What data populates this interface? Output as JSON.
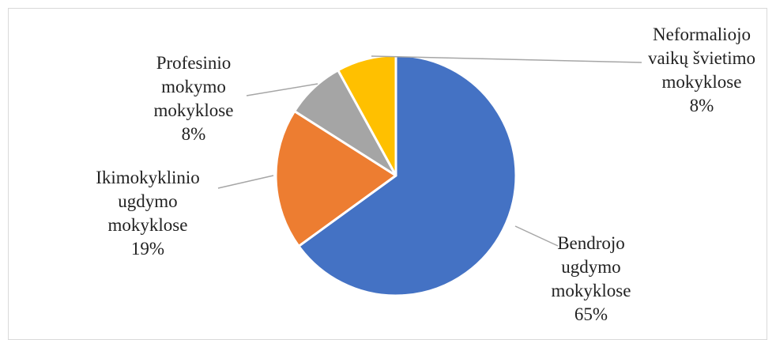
{
  "chart_data": {
    "type": "pie",
    "slices": [
      {
        "label": [
          "Bendrojo",
          "ugdymo",
          "mokyklose"
        ],
        "pct_label": "65%",
        "value": 65,
        "color": "#4472C4"
      },
      {
        "label": [
          "Ikimokyklinio",
          "ugdymo",
          "mokyklose"
        ],
        "pct_label": "19%",
        "value": 19,
        "color": "#ED7D31"
      },
      {
        "label": [
          "Profesinio",
          "mokymo",
          "mokyklose"
        ],
        "pct_label": "8%",
        "value": 8,
        "color": "#A5A5A5"
      },
      {
        "label": [
          "Neformaliojo",
          "vaikų švietimo",
          "mokyklose"
        ],
        "pct_label": "8%",
        "value": 8,
        "color": "#FFC000"
      }
    ],
    "start_angle_deg": 0,
    "direction": "clockwise",
    "legend": "none",
    "data_labels": "outside with leader lines"
  }
}
